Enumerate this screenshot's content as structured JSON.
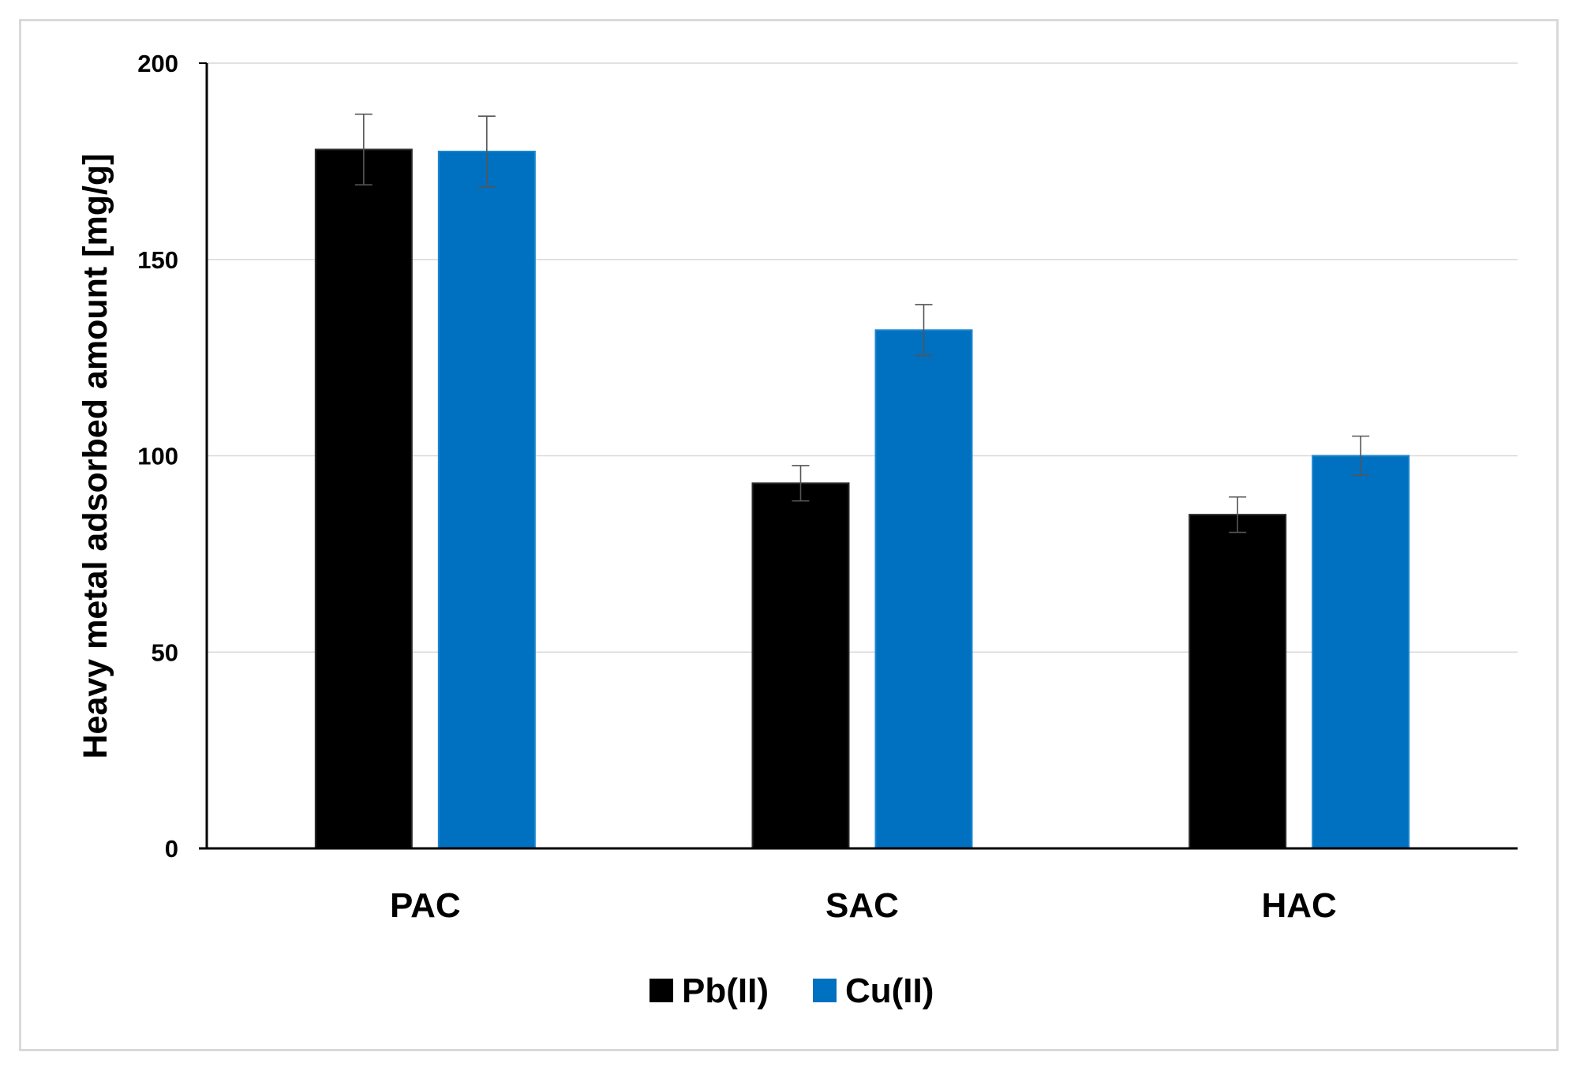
{
  "chart_data": {
    "type": "bar",
    "title": "",
    "xlabel": "",
    "ylabel": "Heavy metal adsorbed amount  [mg/g]",
    "ylim": [
      0,
      200
    ],
    "yticks": [
      0,
      50,
      100,
      150,
      200
    ],
    "grid": true,
    "legend_position": "bottom",
    "categories": [
      "PAC",
      "SAC",
      "HAC"
    ],
    "series": [
      {
        "name": "Pb(II)",
        "color": "#000000",
        "values": [
          178,
          93,
          85
        ],
        "errors": [
          9,
          4.5,
          4.5
        ]
      },
      {
        "name": "Cu(II)",
        "color": "#0070C0",
        "values": [
          177.5,
          132,
          100
        ],
        "errors": [
          9,
          6.5,
          5
        ]
      }
    ]
  }
}
